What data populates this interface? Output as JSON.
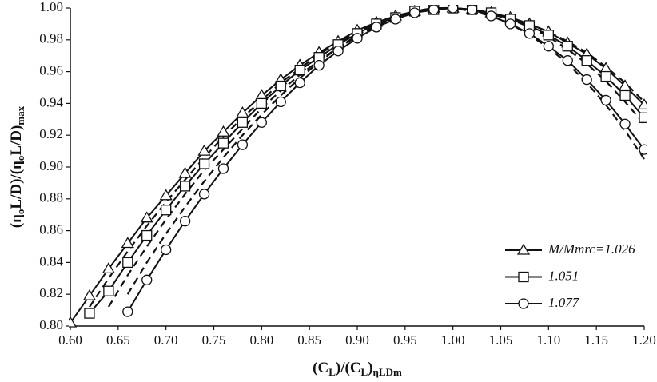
{
  "chart_data": {
    "type": "line",
    "xlabel": [
      {
        "text": "(C",
        "sub": false
      },
      {
        "text": "L",
        "sub": true
      },
      {
        "text": ")/(C",
        "sub": false
      },
      {
        "text": "L",
        "sub": true
      },
      {
        "text": ")",
        "sub": false
      },
      {
        "text": "ηLDm",
        "sub": true
      }
    ],
    "ylabel": [
      {
        "text": "(η",
        "sub": false
      },
      {
        "text": "o",
        "sub": true
      },
      {
        "text": "L/D)/(η",
        "sub": false
      },
      {
        "text": "o",
        "sub": true
      },
      {
        "text": "L/D)",
        "sub": false
      },
      {
        "text": "max",
        "sub": true
      }
    ],
    "x": [
      0.6,
      0.62,
      0.64,
      0.66,
      0.68,
      0.7,
      0.72,
      0.74,
      0.76,
      0.78,
      0.8,
      0.82,
      0.84,
      0.86,
      0.88,
      0.9,
      0.92,
      0.94,
      0.96,
      0.98,
      1.0,
      1.02,
      1.04,
      1.06,
      1.08,
      1.1,
      1.12,
      1.14,
      1.16,
      1.18,
      1.2
    ],
    "xlim": [
      0.6,
      1.2
    ],
    "xticks": [
      {
        "value": 0.6,
        "label": "0.60"
      },
      0.65,
      {
        "value": 0.7,
        "label": "0.70"
      },
      0.75,
      {
        "value": 0.8,
        "label": "0.80"
      },
      0.85,
      {
        "value": 0.9,
        "label": "0.90"
      },
      0.95,
      {
        "value": 1.0,
        "label": "1.00"
      },
      1.05,
      {
        "value": 1.1,
        "label": "1.10"
      },
      1.15,
      {
        "value": 1.2,
        "label": "1.20"
      }
    ],
    "ylim": [
      0.8,
      1.0
    ],
    "yticks": [
      {
        "value": 0.8,
        "label": "0.80"
      },
      0.82,
      0.84,
      0.86,
      0.88,
      {
        "value": 0.9,
        "label": "0.90"
      },
      0.92,
      0.94,
      0.96,
      0.98,
      {
        "value": 1.0,
        "label": "1.00"
      }
    ],
    "legend": "lower right",
    "series": [
      {
        "name": "M/Mmrc=1.026",
        "color": "#111111",
        "marker": "triangle",
        "dashed": false,
        "values": [
          0.802,
          0.819,
          0.836,
          0.852,
          0.868,
          0.882,
          0.896,
          0.91,
          0.922,
          0.934,
          0.945,
          0.955,
          0.964,
          0.972,
          0.979,
          0.986,
          0.991,
          0.995,
          0.998,
          1.0,
          1.0,
          0.999,
          0.997,
          0.994,
          0.99,
          0.985,
          0.978,
          0.971,
          0.962,
          0.951,
          0.939
        ]
      },
      {
        "name": "1.051",
        "color": "#111111",
        "marker": "square",
        "dashed": false,
        "values": [
          null,
          0.808,
          0.822,
          0.84,
          0.857,
          0.873,
          0.888,
          0.902,
          0.915,
          0.928,
          0.94,
          0.951,
          0.961,
          0.969,
          0.977,
          0.984,
          0.99,
          0.994,
          0.998,
          0.999,
          1.0,
          0.999,
          0.997,
          0.993,
          0.989,
          0.983,
          0.976,
          0.967,
          0.957,
          0.945,
          0.931
        ]
      },
      {
        "name": "1.077",
        "color": "#111111",
        "marker": "circle",
        "dashed": false,
        "values": [
          null,
          null,
          null,
          0.809,
          0.829,
          0.848,
          0.866,
          0.883,
          0.899,
          0.914,
          0.928,
          0.941,
          0.953,
          0.964,
          0.973,
          0.981,
          0.988,
          0.993,
          0.997,
          0.999,
          1.0,
          0.999,
          0.995,
          0.99,
          0.984,
          0.976,
          0.967,
          0.955,
          0.942,
          0.927,
          0.911
        ]
      },
      {
        "color": "#111111",
        "dashed": true,
        "values": [
          null,
          0.812,
          0.83,
          0.847,
          0.863,
          0.878,
          0.892,
          0.906,
          0.919,
          0.931,
          0.942,
          0.953,
          0.962,
          0.971,
          0.978,
          0.985,
          0.99,
          0.995,
          0.998,
          1.0,
          1.0,
          0.999,
          0.997,
          0.994,
          0.99,
          0.985,
          0.979,
          0.972,
          0.963,
          0.953,
          0.941
        ]
      },
      {
        "color": "#111111",
        "dashed": true,
        "values": [
          null,
          null,
          0.812,
          0.832,
          0.85,
          0.867,
          0.883,
          0.898,
          0.911,
          0.924,
          0.937,
          0.948,
          0.958,
          0.967,
          0.975,
          0.983,
          0.989,
          0.994,
          0.997,
          0.999,
          1.0,
          0.999,
          0.996,
          0.993,
          0.988,
          0.982,
          0.974,
          0.965,
          0.954,
          0.941,
          0.927
        ]
      },
      {
        "color": "#111111",
        "dashed": true,
        "values": [
          null,
          null,
          null,
          0.82,
          0.84,
          0.858,
          0.875,
          0.891,
          0.906,
          0.92,
          0.933,
          0.945,
          0.956,
          0.966,
          0.975,
          0.982,
          0.989,
          0.994,
          0.997,
          0.999,
          1.0,
          0.998,
          0.995,
          0.99,
          0.983,
          0.975,
          0.965,
          0.953,
          0.939,
          0.923,
          0.905
        ]
      }
    ]
  }
}
